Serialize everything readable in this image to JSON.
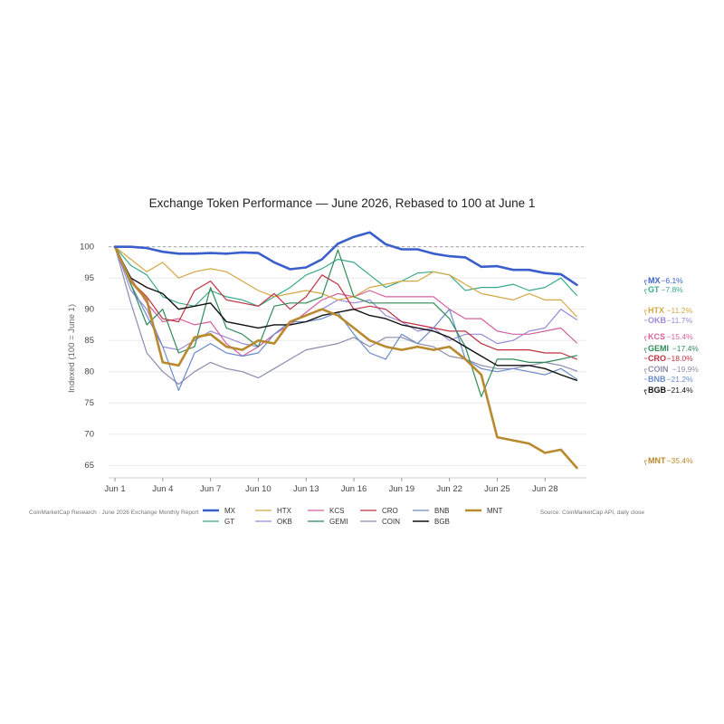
{
  "chart_data": {
    "type": "line",
    "title": "Exchange Token Performance — June 2026, Rebased to 100 at June 1",
    "ylabel": "Indexed (100 = June 1)",
    "xlabel": "",
    "x": [
      1,
      2,
      3,
      4,
      5,
      6,
      7,
      8,
      9,
      10,
      11,
      12,
      13,
      14,
      15,
      16,
      17,
      18,
      19,
      20,
      21,
      22,
      23,
      24,
      25,
      26,
      27,
      28,
      29,
      30
    ],
    "x_ticks": [
      1,
      4,
      7,
      10,
      13,
      16,
      19,
      22,
      25,
      28
    ],
    "x_tick_labels": [
      "Jun 1",
      "Jun 4",
      "Jun 7",
      "Jun 10",
      "Jun 13",
      "Jun 16",
      "Jun 19",
      "Jun 22",
      "Jun 25",
      "Jun 28"
    ],
    "ylim": [
      63,
      103
    ],
    "y_ticks": [
      65,
      70,
      75,
      80,
      85,
      90,
      95,
      100
    ],
    "y_tick_labels": [
      "65",
      "70",
      "75",
      "80",
      "85",
      "90",
      "95",
      "100"
    ],
    "reference_line": 100,
    "grid": "horizontal",
    "series": [
      {
        "name": "MX",
        "color": "#3a5fcd",
        "width": 2.6,
        "end_label": "−6.1%",
        "values": [
          100,
          100,
          99.8,
          99.2,
          98.9,
          98.9,
          99.0,
          98.9,
          99.1,
          99.0,
          97.5,
          96.4,
          96.7,
          98.0,
          100.5,
          101.6,
          102.3,
          100.4,
          99.6,
          99.6,
          98.9,
          98.5,
          98.3,
          96.8,
          96.9,
          96.3,
          96.3,
          95.8,
          95.6,
          93.9
        ]
      },
      {
        "name": "GT",
        "color": "#3aaa8c",
        "width": 1.2,
        "end_label": "−7.8%",
        "values": [
          100,
          97.0,
          95.5,
          92.0,
          91.0,
          90.5,
          93.0,
          92.0,
          91.5,
          90.5,
          92.0,
          93.5,
          95.5,
          96.5,
          98.0,
          97.5,
          95.5,
          93.5,
          94.5,
          95.8,
          96.0,
          95.5,
          93.0,
          93.5,
          93.5,
          94.0,
          93.0,
          93.5,
          95.0,
          92.2
        ]
      },
      {
        "name": "HTX",
        "color": "#d4a843",
        "width": 1.2,
        "end_label": "−11.2%",
        "values": [
          100,
          98.0,
          96.0,
          97.5,
          95.0,
          96.0,
          96.5,
          96.0,
          94.5,
          93.0,
          92.0,
          92.5,
          93.0,
          92.5,
          91.5,
          92.0,
          93.5,
          94.0,
          94.5,
          94.5,
          96.0,
          95.5,
          94.0,
          92.5,
          92.0,
          91.5,
          92.5,
          91.5,
          91.5,
          88.8
        ]
      },
      {
        "name": "OKB",
        "color": "#9a8ad8",
        "width": 1.2,
        "end_label": "−11.7%",
        "values": [
          100,
          93.0,
          90.0,
          84.0,
          83.5,
          85.0,
          86.5,
          85.5,
          84.5,
          84.0,
          86.0,
          88.0,
          89.0,
          90.0,
          91.5,
          91.0,
          91.5,
          89.0,
          88.0,
          86.5,
          87.0,
          85.0,
          86.0,
          86.0,
          84.5,
          85.0,
          86.5,
          87.0,
          90.0,
          88.3
        ]
      },
      {
        "name": "KCS",
        "color": "#d460a0",
        "width": 1.2,
        "end_label": "−15.4%",
        "values": [
          100,
          95.0,
          91.0,
          88.0,
          88.5,
          87.5,
          88.0,
          84.5,
          82.5,
          84.0,
          86.0,
          87.5,
          89.5,
          91.5,
          92.5,
          92.0,
          93.0,
          92.0,
          92.0,
          92.0,
          92.0,
          90.0,
          88.5,
          88.5,
          86.5,
          86.0,
          86.0,
          86.5,
          87.0,
          84.6
        ]
      },
      {
        "name": "GEMI",
        "color": "#2e8b57",
        "width": 1.2,
        "end_label": "−17.4%",
        "values": [
          100,
          94.0,
          87.5,
          90.0,
          83.0,
          84.0,
          93.5,
          87.0,
          86.0,
          84.0,
          90.5,
          91.0,
          91.0,
          92.0,
          99.5,
          92.0,
          91.0,
          91.0,
          91.0,
          91.0,
          91.0,
          88.5,
          84.0,
          76.0,
          82.0,
          82.0,
          81.5,
          81.5,
          82.0,
          82.6
        ]
      },
      {
        "name": "CRO",
        "color": "#c03040",
        "width": 1.2,
        "end_label": "−18.0%",
        "values": [
          100,
          94.5,
          92.0,
          88.5,
          88.0,
          93.0,
          94.5,
          91.5,
          91.0,
          90.5,
          92.5,
          90.0,
          92.0,
          95.5,
          94.0,
          90.0,
          90.5,
          90.0,
          88.0,
          87.5,
          87.0,
          86.5,
          86.5,
          84.5,
          83.5,
          83.5,
          83.5,
          83.0,
          83.0,
          82.0
        ]
      },
      {
        "name": "COIN",
        "color": "#8c8cac",
        "width": 1.2,
        "end_label": "−19.9%",
        "values": [
          100,
          91.0,
          83.0,
          80.0,
          78.0,
          80.0,
          81.5,
          80.5,
          80.0,
          79.0,
          80.5,
          82.0,
          83.5,
          84.0,
          84.5,
          85.5,
          84.0,
          85.5,
          85.5,
          84.5,
          84.0,
          82.5,
          82.0,
          81.0,
          80.5,
          80.5,
          81.0,
          81.5,
          81.0,
          80.1
        ]
      },
      {
        "name": "BNB",
        "color": "#6a8ac8",
        "width": 1.2,
        "end_label": "−21.2%",
        "values": [
          100,
          94.0,
          89.0,
          84.0,
          77.0,
          83.0,
          84.5,
          83.0,
          82.5,
          83.0,
          86.0,
          88.0,
          88.0,
          88.5,
          89.5,
          86.0,
          83.0,
          82.0,
          86.0,
          84.5,
          87.0,
          90.0,
          82.0,
          80.5,
          80.0,
          80.5,
          80.0,
          79.5,
          80.5,
          78.8
        ]
      },
      {
        "name": "BGB",
        "color": "#111111",
        "width": 1.4,
        "end_label": "−21.4%",
        "values": [
          100,
          95.0,
          93.5,
          92.5,
          90.0,
          90.5,
          91.0,
          88.0,
          87.5,
          87.0,
          87.5,
          87.5,
          88.0,
          89.0,
          89.5,
          90.0,
          89.0,
          88.5,
          87.5,
          87.0,
          86.5,
          85.5,
          84.0,
          82.5,
          81.0,
          81.0,
          81.0,
          80.5,
          79.5,
          78.6
        ]
      },
      {
        "name": "MNT",
        "color": "#b8892d",
        "width": 2.6,
        "end_label": "−35.4%",
        "values": [
          100,
          94.5,
          91.5,
          81.5,
          81.0,
          85.5,
          86.0,
          84.0,
          83.5,
          85.0,
          84.5,
          88.0,
          89.0,
          90.0,
          89.0,
          87.0,
          85.0,
          84.0,
          83.5,
          84.0,
          83.5,
          84.0,
          82.0,
          79.5,
          69.5,
          69.0,
          68.5,
          67.0,
          67.5,
          64.6
        ]
      }
    ],
    "legend_placement": "bottom",
    "legend_order": [
      "MX",
      "GT",
      "HTX",
      "OKB",
      "KCS",
      "GEMI",
      "CRO",
      "COIN",
      "BNB",
      "BGB",
      "MNT"
    ]
  },
  "footer": {
    "left": "CoinMarketCap Research · June 2026 Exchange Monthly Report",
    "right": "Source: CoinMarketCap API, daily close"
  }
}
